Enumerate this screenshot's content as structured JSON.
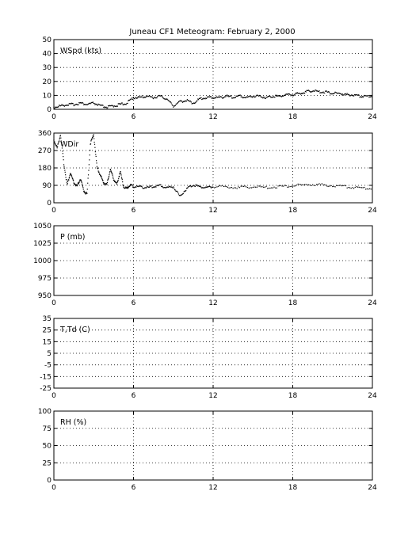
{
  "title": "Juneau CF1 Meteogram:  February  2, 2000",
  "chart_data": [
    {
      "type": "scatter",
      "label": "WSpd (kts)",
      "xlim": [
        0,
        24
      ],
      "ylim": [
        0,
        50
      ],
      "xticks": [
        0,
        6,
        12,
        18,
        24
      ],
      "yticks": [
        0,
        10,
        20,
        30,
        40,
        50
      ],
      "grid": true,
      "series": [
        {
          "x": [
            0,
            0.5,
            1,
            1.5,
            2,
            2.5,
            3,
            3.5,
            4,
            4.5,
            5,
            5.5,
            6,
            6.5,
            7,
            7.5,
            8,
            8.5,
            9,
            9.5,
            10,
            10.5,
            11,
            11.5,
            12,
            12.5,
            13,
            13.5,
            14,
            14.5,
            15,
            15.5,
            16,
            16.5,
            17,
            17.5,
            18,
            18.5,
            19,
            19.5,
            20,
            20.5,
            21,
            21.5,
            22,
            22.5,
            23,
            23.5,
            24
          ],
          "y": [
            1,
            2,
            3,
            3,
            4,
            3,
            4,
            2,
            1,
            2,
            3,
            4,
            8,
            8,
            9,
            8,
            9,
            7,
            2,
            5,
            6,
            4,
            7,
            8,
            8,
            8,
            9,
            8,
            9,
            8,
            9,
            9,
            8,
            9,
            9,
            10,
            10,
            11,
            12,
            13,
            12,
            12,
            11,
            11,
            10,
            10,
            9,
            9,
            9
          ]
        }
      ]
    },
    {
      "type": "scatter",
      "label": "WDir",
      "xlim": [
        0,
        24
      ],
      "ylim": [
        0,
        360
      ],
      "xticks": [
        0,
        6,
        12,
        18,
        24
      ],
      "yticks": [
        0,
        90,
        180,
        270,
        360
      ],
      "grid": true,
      "series": [
        {
          "x": [
            0,
            0.25,
            0.5,
            0.75,
            1,
            1.25,
            1.5,
            1.75,
            2,
            2.25,
            2.5,
            2.75,
            3,
            3.25,
            3.5,
            3.75,
            4,
            4.25,
            4.5,
            4.75,
            5,
            5.25,
            5.5,
            5.75,
            6,
            6.5,
            7,
            7.5,
            8,
            8.5,
            9,
            9.5,
            10,
            10.5,
            11,
            11.5,
            12,
            13,
            14,
            15,
            16,
            17,
            18,
            19,
            20,
            21,
            22,
            23,
            24
          ],
          "y": [
            320,
            280,
            350,
            200,
            90,
            150,
            100,
            80,
            120,
            60,
            40,
            300,
            350,
            180,
            140,
            100,
            90,
            170,
            120,
            90,
            160,
            80,
            70,
            90,
            80,
            80,
            75,
            80,
            85,
            75,
            80,
            30,
            70,
            90,
            80,
            75,
            80,
            80,
            75,
            80,
            75,
            80,
            85,
            90,
            90,
            85,
            80,
            75,
            70
          ]
        }
      ]
    },
    {
      "type": "scatter",
      "label": "P (mb)",
      "xlim": [
        0,
        24
      ],
      "ylim": [
        950,
        1050
      ],
      "xticks": [
        0,
        6,
        12,
        18,
        24
      ],
      "yticks": [
        950,
        975,
        1000,
        1025,
        1050
      ],
      "grid": true,
      "series": []
    },
    {
      "type": "scatter",
      "label": "T,Td (C)",
      "xlim": [
        0,
        24
      ],
      "ylim": [
        -25,
        35
      ],
      "xticks": [
        0,
        6,
        12,
        18,
        24
      ],
      "yticks": [
        -25,
        -15,
        -5,
        5,
        15,
        25,
        35
      ],
      "grid": true,
      "series": []
    },
    {
      "type": "scatter",
      "label": "RH (%)",
      "xlim": [
        0,
        24
      ],
      "ylim": [
        0,
        100
      ],
      "xticks": [
        0,
        6,
        12,
        18,
        24
      ],
      "yticks": [
        0,
        25,
        50,
        75,
        100
      ],
      "grid": true,
      "series": []
    }
  ]
}
